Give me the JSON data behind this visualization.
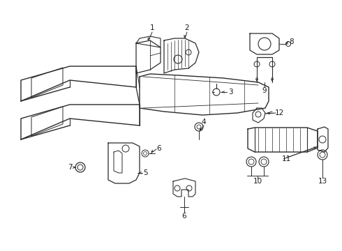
{
  "background_color": "#ffffff",
  "fig_width": 4.9,
  "fig_height": 3.6,
  "dpi": 100,
  "line_color": "#2a2a2a",
  "text_color": "#1a1a1a",
  "font_size": 7.5
}
